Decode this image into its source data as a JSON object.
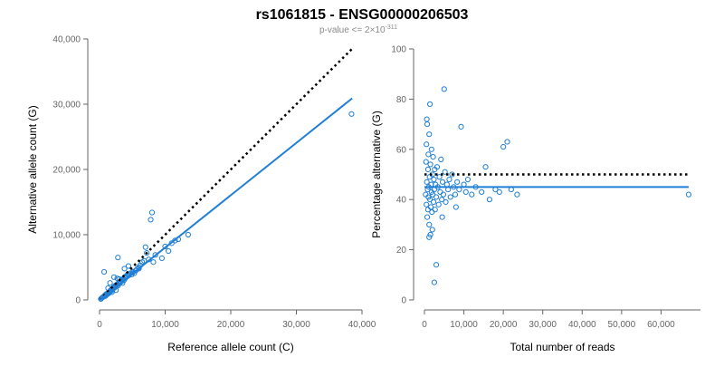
{
  "title": "rs1061815 - ENSG00000206503",
  "subtitle_prefix": "p-value <= 2×10",
  "subtitle_exponent": "-311",
  "colors": {
    "points": "#1f7fd6",
    "fit": "#1f7fd6",
    "reference": "#000000",
    "axis": "#666666"
  },
  "chart_data": [
    {
      "type": "scatter",
      "title": "",
      "xlabel": "Reference allele count (C)",
      "ylabel": "Alternative allele count (G)",
      "xlim": [
        0,
        40000
      ],
      "ylim": [
        0,
        40000
      ],
      "x_ticks": [
        0,
        10000,
        20000,
        30000,
        40000
      ],
      "y_ticks": [
        0,
        10000,
        20000,
        30000,
        40000
      ],
      "x_tick_labels": [
        "0",
        "10,000",
        "20,000",
        "30,000",
        "40,000"
      ],
      "y_tick_labels": [
        "0",
        "10,000",
        "20,000",
        "30,000",
        "40,000"
      ],
      "grid": false,
      "points": [
        [
          200,
          150
        ],
        [
          350,
          300
        ],
        [
          500,
          420
        ],
        [
          650,
          500
        ],
        [
          800,
          700
        ],
        [
          900,
          600
        ],
        [
          1000,
          900
        ],
        [
          1100,
          800
        ],
        [
          1200,
          1000
        ],
        [
          1300,
          950
        ],
        [
          1400,
          1200
        ],
        [
          1500,
          1100
        ],
        [
          1600,
          1300
        ],
        [
          1700,
          1500
        ],
        [
          1800,
          1400
        ],
        [
          1900,
          1700
        ],
        [
          2000,
          1600
        ],
        [
          2100,
          1800
        ],
        [
          2200,
          2000
        ],
        [
          2300,
          1900
        ],
        [
          2400,
          2200
        ],
        [
          2500,
          2100
        ],
        [
          2600,
          2300
        ],
        [
          2700,
          2400
        ],
        [
          2800,
          2200
        ],
        [
          2900,
          2600
        ],
        [
          3000,
          2500
        ],
        [
          3100,
          2700
        ],
        [
          3200,
          2900
        ],
        [
          3300,
          2800
        ],
        [
          3400,
          3100
        ],
        [
          3500,
          3000
        ],
        [
          3600,
          3200
        ],
        [
          3700,
          3000
        ],
        [
          3800,
          3400
        ],
        [
          3900,
          3300
        ],
        [
          4000,
          3500
        ],
        [
          4100,
          3700
        ],
        [
          4200,
          3600
        ],
        [
          4300,
          3900
        ],
        [
          4500,
          3800
        ],
        [
          4700,
          4100
        ],
        [
          4900,
          3900
        ],
        [
          5100,
          4300
        ],
        [
          5300,
          4100
        ],
        [
          5500,
          4500
        ],
        [
          5700,
          4700
        ],
        [
          6000,
          5000
        ],
        [
          6200,
          5300
        ],
        [
          6500,
          5800
        ],
        [
          6800,
          6000
        ],
        [
          7000,
          8100
        ],
        [
          7200,
          7200
        ],
        [
          7500,
          6200
        ],
        [
          7800,
          12300
        ],
        [
          8000,
          13400
        ],
        [
          8200,
          5800
        ],
        [
          8500,
          6900
        ],
        [
          9500,
          6400
        ],
        [
          10000,
          8200
        ],
        [
          10500,
          7500
        ],
        [
          11000,
          8700
        ],
        [
          11500,
          9100
        ],
        [
          12000,
          9300
        ],
        [
          13500,
          10000
        ],
        [
          700,
          4300
        ],
        [
          1600,
          2600
        ],
        [
          2200,
          3500
        ],
        [
          2800,
          6500
        ],
        [
          3000,
          3200
        ],
        [
          4400,
          5200
        ],
        [
          2500,
          1500
        ],
        [
          3500,
          2600
        ],
        [
          5000,
          4200
        ],
        [
          6000,
          4800
        ],
        [
          1300,
          1800
        ],
        [
          1900,
          1200
        ],
        [
          2700,
          3300
        ],
        [
          3800,
          4800
        ],
        [
          38400,
          28500
        ]
      ],
      "fit_line": {
        "x": [
          0,
          38500
        ],
        "y": [
          0,
          30900
        ]
      },
      "reference_line": {
        "x": [
          0,
          38500
        ],
        "y": [
          0,
          38500
        ]
      }
    },
    {
      "type": "scatter",
      "title": "",
      "xlabel": "Total number of reads",
      "ylabel": "Percentage alternative (G)",
      "xlim": [
        0,
        70000
      ],
      "ylim": [
        0,
        100
      ],
      "x_ticks": [
        0,
        10000,
        20000,
        30000,
        40000,
        50000,
        60000
      ],
      "y_ticks": [
        0,
        20,
        40,
        60,
        80,
        100
      ],
      "x_tick_labels": [
        "0",
        "10,000",
        "20,000",
        "30,000",
        "40,000",
        "50,000",
        "60,000"
      ],
      "y_tick_labels": [
        "0",
        "20",
        "40",
        "60",
        "80",
        "100"
      ],
      "grid": false,
      "points": [
        [
          300,
          42
        ],
        [
          400,
          55
        ],
        [
          500,
          38
        ],
        [
          500,
          62
        ],
        [
          600,
          47
        ],
        [
          700,
          33
        ],
        [
          700,
          70
        ],
        [
          800,
          44
        ],
        [
          900,
          52
        ],
        [
          900,
          36
        ],
        [
          1000,
          58
        ],
        [
          1000,
          41
        ],
        [
          1100,
          45
        ],
        [
          1200,
          30
        ],
        [
          1200,
          66
        ],
        [
          1300,
          49
        ],
        [
          1400,
          40
        ],
        [
          1400,
          78
        ],
        [
          1500,
          54
        ],
        [
          1600,
          37
        ],
        [
          1700,
          46
        ],
        [
          1800,
          60
        ],
        [
          1800,
          43
        ],
        [
          1900,
          35
        ],
        [
          2000,
          50
        ],
        [
          2100,
          42
        ],
        [
          2200,
          57
        ],
        [
          2300,
          39
        ],
        [
          2400,
          48
        ],
        [
          2500,
          44
        ],
        [
          2600,
          52
        ],
        [
          2700,
          36
        ],
        [
          2800,
          46
        ],
        [
          3000,
          41
        ],
        [
          3000,
          14
        ],
        [
          2500,
          7
        ],
        [
          3200,
          53
        ],
        [
          3400,
          45
        ],
        [
          3600,
          38
        ],
        [
          3800,
          49
        ],
        [
          4000,
          43
        ],
        [
          4200,
          56
        ],
        [
          4400,
          40
        ],
        [
          4600,
          47
        ],
        [
          4800,
          42
        ],
        [
          5000,
          84
        ],
        [
          5200,
          51
        ],
        [
          5400,
          39
        ],
        [
          5700,
          46
        ],
        [
          6000,
          44
        ],
        [
          6300,
          48
        ],
        [
          6600,
          41
        ],
        [
          7000,
          50
        ],
        [
          7400,
          45
        ],
        [
          7800,
          42
        ],
        [
          8300,
          47
        ],
        [
          8800,
          44
        ],
        [
          9300,
          69
        ],
        [
          10000,
          46
        ],
        [
          10500,
          43
        ],
        [
          11000,
          48
        ],
        [
          12000,
          42
        ],
        [
          13000,
          45
        ],
        [
          14500,
          43
        ],
        [
          15500,
          53
        ],
        [
          16500,
          40
        ],
        [
          18000,
          44
        ],
        [
          19000,
          43
        ],
        [
          20000,
          61
        ],
        [
          21000,
          63
        ],
        [
          22000,
          44
        ],
        [
          23500,
          42
        ],
        [
          1500,
          26
        ],
        [
          600,
          72
        ],
        [
          1200,
          25
        ],
        [
          2000,
          28
        ],
        [
          4500,
          33
        ],
        [
          8000,
          37
        ],
        [
          67000,
          42
        ]
      ],
      "fit_line": {
        "x": [
          0,
          67000
        ],
        "y": [
          45,
          45
        ]
      },
      "reference_line": {
        "x": [
          0,
          67000
        ],
        "y": [
          50,
          50
        ]
      }
    }
  ]
}
